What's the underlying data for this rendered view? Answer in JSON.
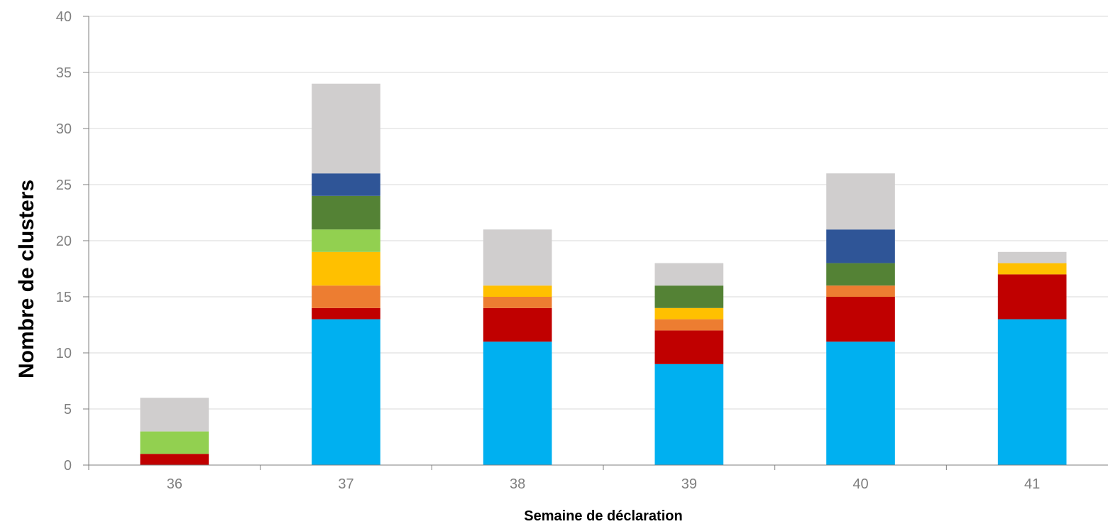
{
  "chart_data": {
    "type": "bar",
    "stacked": true,
    "title": "",
    "xlabel": "Semaine de déclaration",
    "ylabel": "Nombre de clusters",
    "categories": [
      "36",
      "37",
      "38",
      "39",
      "40",
      "41"
    ],
    "ylim": [
      0,
      40
    ],
    "yticks": [
      "0",
      "5",
      "10",
      "15",
      "20",
      "25",
      "30",
      "35",
      "40"
    ],
    "grid": true,
    "legend": "none",
    "series": [
      {
        "color": "#00b0f0",
        "values": [
          0,
          13,
          11,
          9,
          11,
          13
        ]
      },
      {
        "color": "#c00000",
        "values": [
          1,
          1,
          3,
          3,
          4,
          4
        ]
      },
      {
        "color": "#ed7d31",
        "values": [
          0,
          2,
          1,
          1,
          1,
          0
        ]
      },
      {
        "color": "#ffc000",
        "values": [
          0,
          3,
          1,
          1,
          0,
          1
        ]
      },
      {
        "color": "#92d050",
        "values": [
          2,
          2,
          0,
          0,
          0,
          0
        ]
      },
      {
        "color": "#548235",
        "values": [
          0,
          3,
          0,
          2,
          2,
          0
        ]
      },
      {
        "color": "#2f5597",
        "values": [
          0,
          2,
          0,
          0,
          3,
          0
        ]
      },
      {
        "color": "#d0cece",
        "values": [
          3,
          8,
          5,
          2,
          5,
          1
        ]
      }
    ]
  }
}
